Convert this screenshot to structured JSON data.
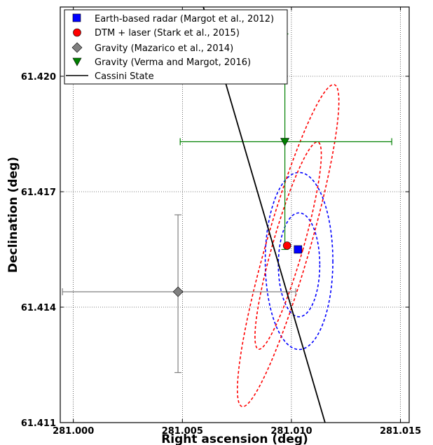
{
  "chart_data": {
    "type": "scatter",
    "xlabel": "Right ascension (deg)",
    "ylabel": "Declination (deg)",
    "xlim": [
      280.9994,
      281.0154
    ],
    "ylim": [
      61.411,
      61.4218
    ],
    "x_ticks": [
      281.0,
      281.005,
      281.01,
      281.015
    ],
    "x_tick_labels": [
      "281.000",
      "281.005",
      "281.010",
      "281.015"
    ],
    "y_ticks": [
      61.411,
      61.414,
      61.417,
      61.42
    ],
    "y_tick_labels": [
      "61.411",
      "61.414",
      "61.417",
      "61.420"
    ],
    "grid": true,
    "legend_position": "top-left",
    "series": [
      {
        "name": "Earth-based radar (Margot et al., 2012)",
        "marker": "square",
        "color": "#0000ff",
        "x": 281.0103,
        "y": 61.4155,
        "ellipses": [
          {
            "center": [
              281.01035,
              61.4151
            ],
            "rx": 0.00095,
            "ry": 0.00135,
            "angle": 0
          },
          {
            "center": [
              281.01035,
              61.4152
            ],
            "rx": 0.00155,
            "ry": 0.0023,
            "angle": 0
          }
        ]
      },
      {
        "name": "DTM + laser (Stark et al., 2015)",
        "marker": "circle",
        "color": "#ff0000",
        "x": 281.0098,
        "y": 61.4156,
        "ellipses": [
          {
            "center": [
              281.00985,
              61.4156
            ],
            "rx": 0.0007,
            "ry": 0.0028,
            "angle": 16
          },
          {
            "center": [
              281.00985,
              61.4156
            ],
            "rx": 0.001,
            "ry": 0.00435,
            "angle": 16
          }
        ]
      },
      {
        "name": "Gravity (Mazarico et al., 2014)",
        "marker": "diamond",
        "color": "#808080",
        "x": 281.0048,
        "y": 61.4144,
        "x_err": [
          280.9995,
          281.0102
        ],
        "y_err": [
          61.4123,
          61.4164
        ]
      },
      {
        "name": "Gravity (Verma and Margot, 2016)",
        "marker": "triangle-down",
        "color": "#008000",
        "x": 281.0097,
        "y": 61.4183,
        "x_err": [
          281.0049,
          281.0146
        ],
        "y_err": [
          61.4155,
          61.4211
        ]
      },
      {
        "name": "Cassini State",
        "marker": "line",
        "color": "#000000",
        "x": [
          281.0056,
          281.0118
        ],
        "y": [
          61.4225,
          61.4105
        ]
      }
    ]
  }
}
